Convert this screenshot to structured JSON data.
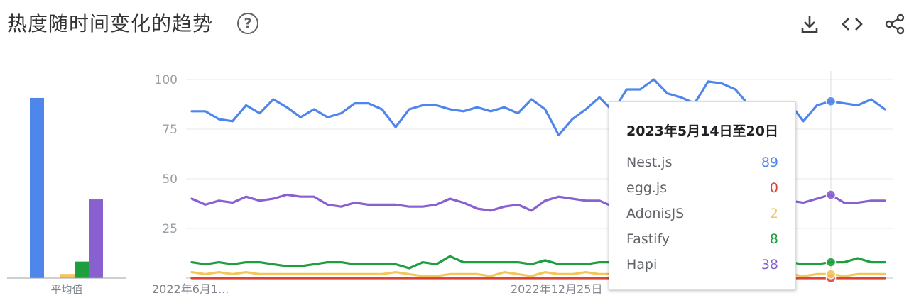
{
  "header": {
    "title": "热度随时间变化的趋势"
  },
  "icons": {
    "help": "help-circle-icon",
    "download": "download-icon",
    "embed": "code-embed-icon",
    "share": "share-icon"
  },
  "colors": {
    "nest": "#4f86ec",
    "egg": "#db4437",
    "adonis": "#f4c55b",
    "fastify": "#1e9e3f",
    "hapi": "#8860d0"
  },
  "chart_data": [
    {
      "type": "bar",
      "title": "平均值",
      "categories": [
        "Nest.js",
        "egg.js",
        "AdonisJS",
        "Fastify",
        "Hapi"
      ],
      "values": [
        87,
        0,
        2,
        8,
        38
      ],
      "xlabel": "平均值",
      "ylim": [
        0,
        100
      ]
    },
    {
      "type": "line",
      "ylim": [
        0,
        100
      ],
      "yticks": [
        "100",
        "75",
        "50",
        "25"
      ],
      "x_tick_labels": [
        "2022年6月1...",
        "2022年12月25日"
      ],
      "series": [
        {
          "name": "Nest.js",
          "values": [
            84,
            84,
            80,
            79,
            87,
            83,
            90,
            86,
            81,
            85,
            81,
            83,
            88,
            88,
            85,
            76,
            85,
            87,
            87,
            85,
            84,
            86,
            84,
            86,
            83,
            90,
            85,
            72,
            80,
            85,
            91,
            84,
            95,
            95,
            100,
            93,
            91,
            88,
            99,
            98,
            95,
            87,
            86,
            85,
            88,
            79,
            87,
            89,
            88,
            87,
            90,
            85
          ]
        },
        {
          "name": "egg.js",
          "values": [
            0,
            0,
            0,
            0,
            0,
            0,
            0,
            0,
            0,
            0,
            0,
            0,
            0,
            0,
            0,
            0,
            0,
            0,
            0,
            0,
            0,
            0,
            0,
            0,
            0,
            0,
            0,
            0,
            0,
            0,
            0,
            0,
            0,
            0,
            0,
            0,
            0,
            0,
            0,
            0,
            0,
            0,
            0,
            0,
            0,
            0,
            0,
            0,
            0,
            0,
            0,
            0
          ]
        },
        {
          "name": "AdonisJS",
          "values": [
            3,
            2,
            3,
            2,
            3,
            2,
            2,
            2,
            2,
            2,
            2,
            2,
            2,
            2,
            2,
            3,
            2,
            1,
            1,
            2,
            2,
            2,
            1,
            3,
            2,
            1,
            3,
            2,
            2,
            3,
            2,
            2,
            1,
            2,
            1,
            2,
            3,
            2,
            2,
            1,
            1,
            3,
            2,
            2,
            2,
            1,
            2,
            2,
            1,
            2,
            2,
            2
          ]
        },
        {
          "name": "Fastify",
          "values": [
            8,
            7,
            8,
            7,
            8,
            8,
            7,
            6,
            6,
            7,
            8,
            8,
            7,
            7,
            7,
            7,
            5,
            8,
            7,
            11,
            8,
            8,
            8,
            8,
            8,
            7,
            9,
            7,
            7,
            7,
            8,
            8,
            9,
            9,
            10,
            11,
            10,
            8,
            8,
            8,
            8,
            8,
            7,
            7,
            8,
            7,
            7,
            8,
            8,
            10,
            8,
            8
          ]
        },
        {
          "name": "Hapi",
          "values": [
            40,
            37,
            39,
            38,
            41,
            39,
            40,
            42,
            41,
            41,
            37,
            36,
            38,
            37,
            37,
            37,
            36,
            36,
            37,
            40,
            38,
            35,
            34,
            36,
            37,
            34,
            39,
            41,
            40,
            39,
            39,
            36,
            36,
            35,
            34,
            37,
            38,
            37,
            36,
            36,
            38,
            34,
            36,
            38,
            39,
            38,
            40,
            42,
            38,
            38,
            39,
            39
          ]
        }
      ]
    }
  ],
  "tooltip": {
    "date": "2023年5月14日至20日",
    "rows": [
      {
        "name": "Nest.js",
        "value": "89"
      },
      {
        "name": "egg.js",
        "value": "0"
      },
      {
        "name": "AdonisJS",
        "value": "2"
      },
      {
        "name": "Fastify",
        "value": "8"
      },
      {
        "name": "Hapi",
        "value": "38"
      }
    ]
  }
}
